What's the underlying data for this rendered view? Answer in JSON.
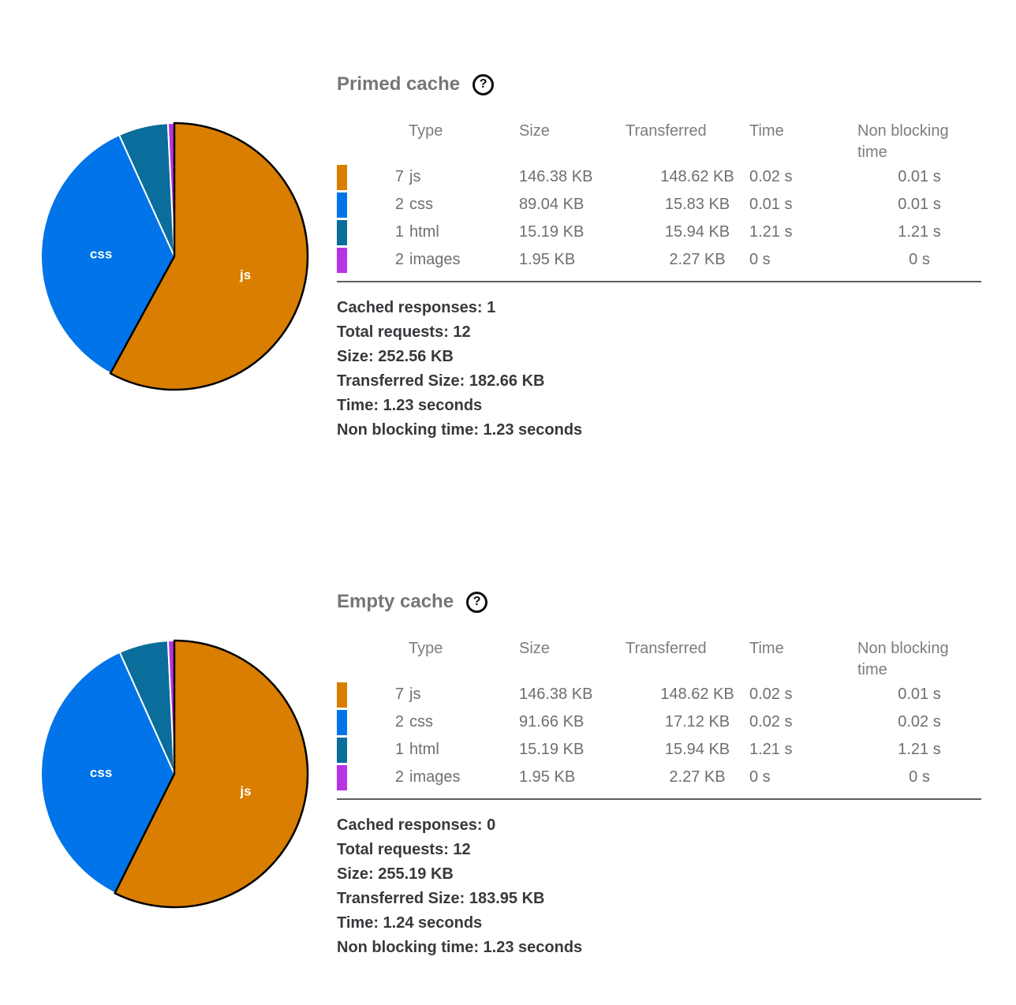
{
  "chart_data": [
    {
      "type": "pie",
      "title": "Primed cache",
      "labels": [
        "js",
        "css",
        "html",
        "images"
      ],
      "values": [
        146.38,
        89.04,
        15.19,
        1.95
      ],
      "unit": "KB",
      "colors": [
        "#d97e00",
        "#0074e8",
        "#0a6d9b",
        "#b833e1"
      ],
      "start_angle": "top",
      "direction": "clockwise",
      "slice_label_min_fraction": 0.1,
      "largest_slice_stroke": "#000000",
      "slice_stroke": "#ffffff",
      "label_color": "#ffffff"
    },
    {
      "type": "pie",
      "title": "Empty cache",
      "labels": [
        "js",
        "css",
        "html",
        "images"
      ],
      "values": [
        146.38,
        91.66,
        15.19,
        1.95
      ],
      "unit": "KB",
      "colors": [
        "#d97e00",
        "#0074e8",
        "#0a6d9b",
        "#b833e1"
      ],
      "start_angle": "top",
      "direction": "clockwise",
      "slice_label_min_fraction": 0.1,
      "largest_slice_stroke": "#000000",
      "slice_stroke": "#ffffff",
      "label_color": "#ffffff"
    }
  ],
  "sections": [
    {
      "title": "Primed cache",
      "help_icon_glyph": "?",
      "table": {
        "headers": {
          "type": "Type",
          "size": "Size",
          "transferred": "Transferred",
          "time": "Time",
          "non_blocking": "Non blocking time"
        },
        "rows": [
          {
            "count": "7",
            "type": "js",
            "size": "146.38 KB",
            "transferred": "148.62 KB",
            "time": "0.02 s",
            "non_blocking": "0.01 s",
            "color": "#d97e00"
          },
          {
            "count": "2",
            "type": "css",
            "size": "89.04 KB",
            "transferred": "15.83 KB",
            "time": "0.01 s",
            "non_blocking": "0.01 s",
            "color": "#0074e8"
          },
          {
            "count": "1",
            "type": "html",
            "size": "15.19 KB",
            "transferred": "15.94 KB",
            "time": "1.21 s",
            "non_blocking": "1.21 s",
            "color": "#0a6d9b"
          },
          {
            "count": "2",
            "type": "images",
            "size": "1.95 KB",
            "transferred": "2.27 KB",
            "time": "0 s",
            "non_blocking": "0 s",
            "color": "#b833e1"
          }
        ]
      },
      "summary": [
        "Cached responses: 1",
        "Total requests: 12",
        "Size: 252.56 KB",
        "Transferred Size: 182.66 KB",
        "Time: 1.23 seconds",
        "Non blocking time: 1.23 seconds"
      ]
    },
    {
      "title": "Empty cache",
      "help_icon_glyph": "?",
      "table": {
        "headers": {
          "type": "Type",
          "size": "Size",
          "transferred": "Transferred",
          "time": "Time",
          "non_blocking": "Non blocking time"
        },
        "rows": [
          {
            "count": "7",
            "type": "js",
            "size": "146.38 KB",
            "transferred": "148.62 KB",
            "time": "0.02 s",
            "non_blocking": "0.01 s",
            "color": "#d97e00"
          },
          {
            "count": "2",
            "type": "css",
            "size": "91.66 KB",
            "transferred": "17.12 KB",
            "time": "0.02 s",
            "non_blocking": "0.02 s",
            "color": "#0074e8"
          },
          {
            "count": "1",
            "type": "html",
            "size": "15.19 KB",
            "transferred": "15.94 KB",
            "time": "1.21 s",
            "non_blocking": "1.21 s",
            "color": "#0a6d9b"
          },
          {
            "count": "2",
            "type": "images",
            "size": "1.95 KB",
            "transferred": "2.27 KB",
            "time": "0 s",
            "non_blocking": "0 s",
            "color": "#b833e1"
          }
        ]
      },
      "summary": [
        "Cached responses: 0",
        "Total requests: 12",
        "Size: 255.19 KB",
        "Transferred Size: 183.95 KB",
        "Time: 1.24 seconds",
        "Non blocking time: 1.23 seconds"
      ]
    }
  ]
}
